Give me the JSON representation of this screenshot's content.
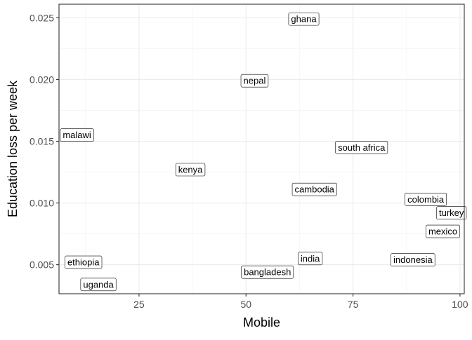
{
  "chart_data": {
    "type": "scatter",
    "title": "",
    "xlabel": "Mobile",
    "ylabel": "Education loss per week",
    "xlim": [
      6.3,
      101.0
    ],
    "ylim": [
      0.00265,
      0.0261
    ],
    "x_ticks": [
      25,
      50,
      75,
      100
    ],
    "y_ticks": [
      0.005,
      0.01,
      0.015,
      0.02,
      0.025
    ],
    "y_tick_labels": [
      "0.005",
      "0.010",
      "0.015",
      "0.020",
      "0.025"
    ],
    "grid": true,
    "theme": "bw",
    "points": [
      {
        "label": "ghana",
        "x": 63.5,
        "y": 0.0249
      },
      {
        "label": "nepal",
        "x": 52.0,
        "y": 0.0199
      },
      {
        "label": "malawi",
        "x": 10.5,
        "y": 0.0155
      },
      {
        "label": "south africa",
        "x": 77.0,
        "y": 0.0145
      },
      {
        "label": "kenya",
        "x": 37.0,
        "y": 0.0127
      },
      {
        "label": "cambodia",
        "x": 66.0,
        "y": 0.0111
      },
      {
        "label": "colombia",
        "x": 92.0,
        "y": 0.0103
      },
      {
        "label": "turkey",
        "x": 98.0,
        "y": 0.0092
      },
      {
        "label": "mexico",
        "x": 96.0,
        "y": 0.0077
      },
      {
        "label": "india",
        "x": 65.0,
        "y": 0.0055
      },
      {
        "label": "indonesia",
        "x": 89.0,
        "y": 0.0054
      },
      {
        "label": "ethiopia",
        "x": 12.0,
        "y": 0.0052
      },
      {
        "label": "bangladesh",
        "x": 55.0,
        "y": 0.0044
      },
      {
        "label": "uganda",
        "x": 15.5,
        "y": 0.0034
      }
    ]
  }
}
